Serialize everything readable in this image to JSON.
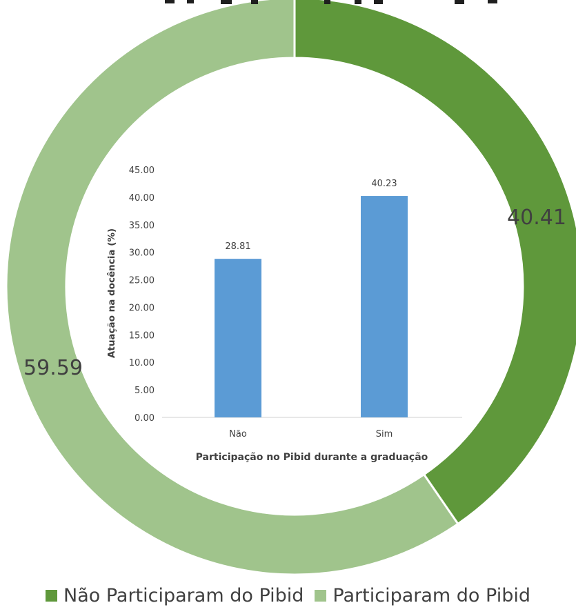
{
  "chart_data": [
    {
      "type": "pie",
      "donut": true,
      "categories": [
        "Não Participaram do Pibid",
        "Participaram do Pibid"
      ],
      "values": [
        40.41,
        59.59
      ],
      "data_labels": [
        "40.41",
        "59.59"
      ],
      "colors": [
        "#5f983b",
        "#a0c48c"
      ],
      "legend": "bottom",
      "title": "",
      "partially_visible_top_text": true
    },
    {
      "type": "bar",
      "categories": [
        "Não",
        "Sim"
      ],
      "values": [
        28.81,
        40.23
      ],
      "data_labels": [
        "28.81",
        "40.23"
      ],
      "xlabel": "Participação no Pibid durante a graduação",
      "ylabel": "Atuação na docência (%)",
      "ylim": [
        0,
        45
      ],
      "y_ticks": [
        "0.00",
        "5.00",
        "10.00",
        "15.00",
        "20.00",
        "25.00",
        "30.00",
        "35.00",
        "40.00",
        "45.00"
      ],
      "color": "#5b9bd5",
      "grid": false,
      "legend": "none"
    }
  ]
}
